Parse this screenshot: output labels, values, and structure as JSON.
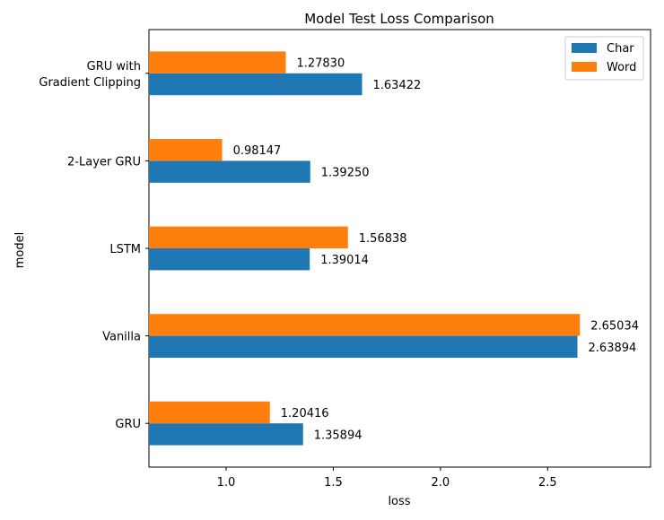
{
  "chart_data": {
    "type": "bar",
    "orientation": "horizontal",
    "title": "Model Test Loss Comparison",
    "xlabel": "loss",
    "ylabel": "model",
    "categories": [
      "GRU",
      "Vanilla",
      "LSTM",
      "2-Layer GRU",
      "GRU with\nGradient Clipping"
    ],
    "series": [
      {
        "name": "Char",
        "color": "#1f77b4",
        "values": [
          1.35894,
          2.63894,
          1.39014,
          1.3925,
          1.63422
        ],
        "labels": [
          "1.35894",
          "2.63894",
          "1.39014",
          "1.39250",
          "1.63422"
        ]
      },
      {
        "name": "Word",
        "color": "#ff7f0e",
        "values": [
          1.20416,
          2.65034,
          1.56838,
          0.98147,
          1.2783
        ],
        "labels": [
          "1.20416",
          "2.65034",
          "1.56838",
          "0.98147",
          "1.27830"
        ]
      }
    ],
    "xlim": [
      0.64,
      2.98
    ],
    "xticks": [
      1.0,
      1.5,
      2.0,
      2.5
    ],
    "xtick_labels": [
      "1.0",
      "1.5",
      "2.0",
      "2.5"
    ],
    "grid": false,
    "legend_position": "top-right"
  }
}
